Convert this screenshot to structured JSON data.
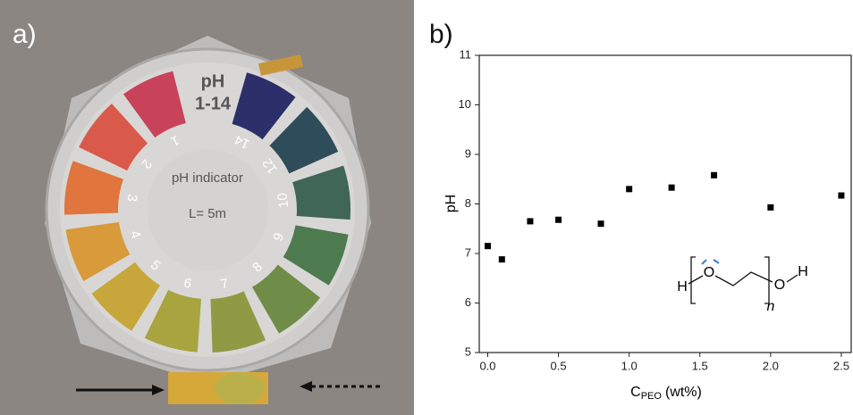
{
  "panels": [
    "a)",
    "b)"
  ],
  "photo": {
    "title": "pH",
    "range": "1-14",
    "center_label": "pH indicator",
    "length": "L= 5m",
    "numbers": [
      1,
      2,
      3,
      4,
      5,
      6,
      7,
      8,
      9,
      10,
      12,
      14
    ]
  },
  "chart_data": {
    "type": "scatter",
    "xlabel": "C",
    "xlabel_sub": "PEO",
    "xlabel_unit": "(wt%)",
    "ylabel": "pH",
    "x": [
      0,
      0.1,
      0.3,
      0.5,
      0.8,
      1.0,
      1.3,
      1.6,
      2.0,
      2.5
    ],
    "values": [
      7.15,
      6.88,
      7.65,
      7.68,
      7.6,
      8.3,
      8.33,
      8.58,
      7.93,
      8.17
    ],
    "color": "#000000",
    "xlim": [
      -0.06,
      2.57
    ],
    "ylim": [
      5,
      11
    ],
    "xticks": [
      {
        "value": 0,
        "label": "0.0"
      },
      0.5,
      {
        "value": 1,
        "label": "1.0"
      },
      1.5,
      {
        "value": 2,
        "label": "2.0"
      },
      2.5
    ],
    "yticks": [
      5,
      6,
      7,
      8,
      9,
      10,
      11
    ]
  },
  "structure": {
    "atoms": [
      "H",
      "O",
      "O",
      "H"
    ],
    "repeat": "n"
  }
}
